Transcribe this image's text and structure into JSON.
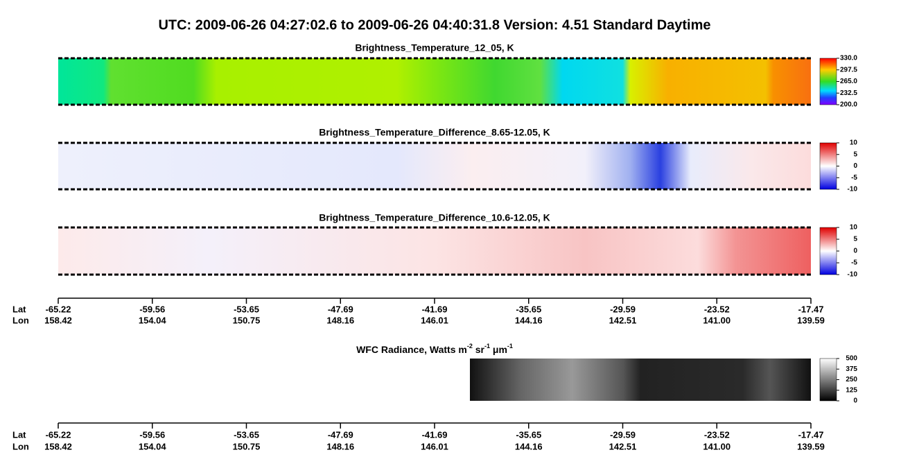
{
  "title": "UTC:  2009-06-26   04:27:02.6  to  2009-06-26   04:40:31.8    Version: 4.51  Standard Daytime",
  "panels": [
    {
      "title": "Brightness_Temperature_12_05, K",
      "range": [
        200,
        330
      ],
      "ticks": [
        {
          "value": 330,
          "label": "330.0"
        },
        {
          "value": 297.5,
          "label": "297.5"
        },
        {
          "value": 265,
          "label": "265.0"
        },
        {
          "value": 232.5,
          "label": "232.5"
        },
        {
          "value": 200,
          "label": "200.0"
        }
      ]
    },
    {
      "title": "Brightness_Temperature_Difference_8.65-12.05, K",
      "range": [
        -10,
        10
      ],
      "ticks": [
        10,
        5,
        0,
        -5,
        -10
      ]
    },
    {
      "title": "Brightness_Temperature_Difference_10.6-12.05, K",
      "range": [
        -10,
        10
      ],
      "ticks": [
        10,
        5,
        0,
        -5,
        -10
      ]
    },
    {
      "title_parts": [
        "WFC Radiance, Watts m",
        "-2",
        " sr",
        "-1",
        " μm",
        "-1"
      ],
      "range": [
        0,
        500
      ],
      "ticks": [
        500,
        375,
        250,
        125,
        0
      ]
    }
  ],
  "axis": {
    "lat_label": "Lat",
    "lon_label": "Lon",
    "lat": [
      -65.22,
      -59.56,
      -53.65,
      -47.69,
      -41.69,
      -35.65,
      -29.59,
      -23.52,
      -17.47
    ],
    "lon": [
      158.42,
      154.04,
      150.75,
      148.16,
      146.01,
      144.16,
      142.51,
      {
        "value": 141,
        "label": "141.00"
      },
      139.59
    ]
  }
}
